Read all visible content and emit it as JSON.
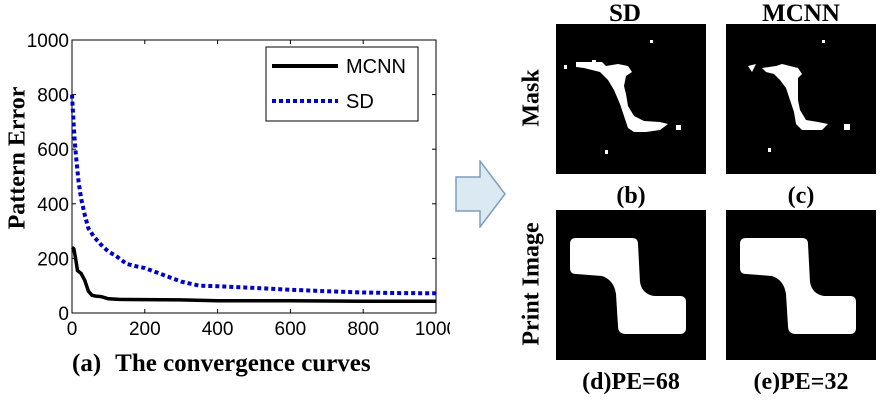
{
  "chart_data": {
    "type": "line",
    "title": "",
    "xlabel": "",
    "ylabel": "Pattern Error",
    "xlim": [
      0,
      1000
    ],
    "ylim": [
      0,
      1000
    ],
    "xticks": [
      0,
      200,
      400,
      600,
      800,
      1000
    ],
    "yticks": [
      0,
      200,
      400,
      600,
      800,
      1000
    ],
    "grid": false,
    "legend_position": "top-right",
    "series": [
      {
        "name": "MCNN",
        "color": "#000000",
        "style": "solid",
        "points": [
          [
            0,
            240
          ],
          [
            5,
            235
          ],
          [
            10,
            200
          ],
          [
            15,
            155
          ],
          [
            25,
            145
          ],
          [
            35,
            120
          ],
          [
            45,
            80
          ],
          [
            55,
            65
          ],
          [
            65,
            62
          ],
          [
            80,
            60
          ],
          [
            100,
            52
          ],
          [
            130,
            50
          ],
          [
            200,
            49
          ],
          [
            300,
            48
          ],
          [
            400,
            45
          ],
          [
            500,
            45
          ],
          [
            600,
            45
          ],
          [
            700,
            44
          ],
          [
            800,
            43
          ],
          [
            900,
            43
          ],
          [
            1000,
            43
          ]
        ]
      },
      {
        "name": "SD",
        "color": "#0000cc",
        "style": "dashed",
        "points": [
          [
            0,
            800
          ],
          [
            4,
            700
          ],
          [
            8,
            620
          ],
          [
            12,
            560
          ],
          [
            18,
            480
          ],
          [
            25,
            420
          ],
          [
            35,
            360
          ],
          [
            45,
            310
          ],
          [
            60,
            280
          ],
          [
            80,
            250
          ],
          [
            100,
            225
          ],
          [
            120,
            210
          ],
          [
            150,
            180
          ],
          [
            180,
            170
          ],
          [
            200,
            165
          ],
          [
            250,
            140
          ],
          [
            300,
            115
          ],
          [
            350,
            100
          ],
          [
            400,
            98
          ],
          [
            450,
            95
          ],
          [
            500,
            92
          ],
          [
            600,
            85
          ],
          [
            700,
            80
          ],
          [
            800,
            75
          ],
          [
            900,
            73
          ],
          [
            1000,
            72
          ]
        ]
      }
    ]
  },
  "chart_caption": {
    "label": "(a)",
    "text": "The convergence curves"
  },
  "grid_panels": {
    "col_titles": [
      "SD",
      "MCNN"
    ],
    "row_labels": [
      "Mask",
      "Print Image"
    ],
    "captions": [
      "(b)",
      "(c)",
      "(d)PE=68",
      "(e)PE=32"
    ]
  },
  "colors": {
    "mcnn": "#000000",
    "sd": "#0000cc",
    "arrow_fill": "#dbe9f3",
    "arrow_stroke": "#7f9db9"
  }
}
